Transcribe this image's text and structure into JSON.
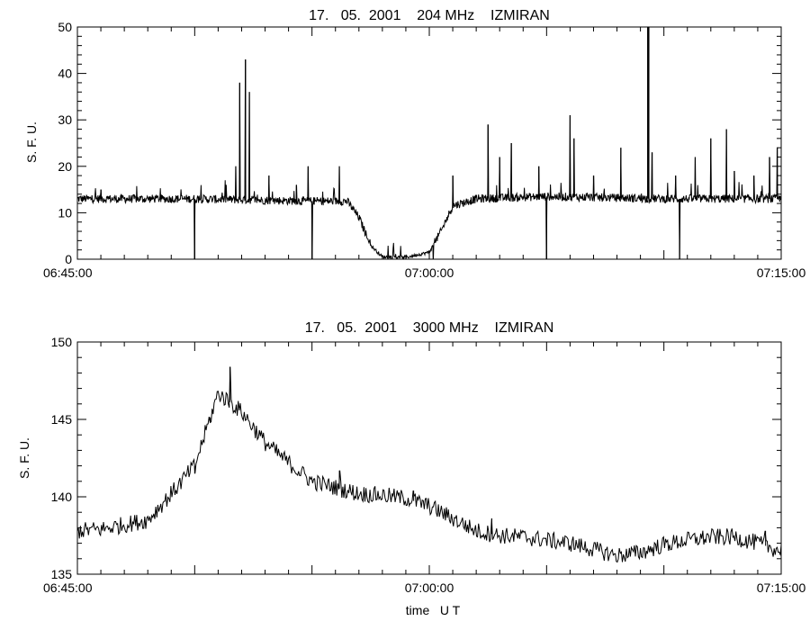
{
  "chart_data": [
    {
      "type": "line",
      "title": "17.   05.  2001    204 MHz    IZMIRAN",
      "xlabel": "",
      "ylabel": "S. F. U.",
      "xlim": [
        "06:45:00",
        "07:15:00"
      ],
      "ylim": [
        0,
        50
      ],
      "x_tick_labels": [
        "06:45:00",
        "07:00:00",
        "07:15:00"
      ],
      "y_tick_labels": [
        "0",
        "10",
        "20",
        "30",
        "40",
        "50"
      ],
      "grid": false,
      "series": [
        {
          "baseline_minutes": [
            0,
            5,
            10,
            11.5,
            12,
            12.5,
            13,
            14,
            15,
            15.5,
            16,
            17,
            20,
            25,
            30
          ],
          "baseline_values": [
            13,
            13,
            12.5,
            12.5,
            9,
            3,
            0.5,
            0.4,
            1.5,
            6,
            11.5,
            13,
            13.5,
            13,
            13
          ],
          "spikes": [
            {
              "t": "06:46:00",
              "sfu": 15
            },
            {
              "t": "06:50:00",
              "sfu": 0
            },
            {
              "t": "06:51:20",
              "sfu": 16
            },
            {
              "t": "06:51:45",
              "sfu": 20
            },
            {
              "t": "06:51:55",
              "sfu": 38
            },
            {
              "t": "06:52:10",
              "sfu": 43
            },
            {
              "t": "06:52:20",
              "sfu": 36
            },
            {
              "t": "06:53:10",
              "sfu": 18
            },
            {
              "t": "06:54:20",
              "sfu": 16
            },
            {
              "t": "06:54:50",
              "sfu": 20
            },
            {
              "t": "06:55:00",
              "sfu": 0
            },
            {
              "t": "06:56:10",
              "sfu": 20
            },
            {
              "t": "07:00:10",
              "sfu": 0
            },
            {
              "t": "07:01:00",
              "sfu": 18
            },
            {
              "t": "07:02:30",
              "sfu": 29
            },
            {
              "t": "07:03:00",
              "sfu": 22
            },
            {
              "t": "07:03:30",
              "sfu": 25
            },
            {
              "t": "07:04:40",
              "sfu": 20
            },
            {
              "t": "07:05:00",
              "sfu": 0
            },
            {
              "t": "07:06:00",
              "sfu": 31
            },
            {
              "t": "07:06:10",
              "sfu": 26
            },
            {
              "t": "07:07:00",
              "sfu": 18
            },
            {
              "t": "07:08:10",
              "sfu": 24
            },
            {
              "t": "07:09:20",
              "sfu": 50
            },
            {
              "t": "07:09:30",
              "sfu": 23
            },
            {
              "t": "07:10:30",
              "sfu": 18
            },
            {
              "t": "07:10:40",
              "sfu": 0
            },
            {
              "t": "07:11:20",
              "sfu": 22
            },
            {
              "t": "07:12:00",
              "sfu": 26
            },
            {
              "t": "07:12:40",
              "sfu": 28
            },
            {
              "t": "07:13:00",
              "sfu": 19
            },
            {
              "t": "07:13:50",
              "sfu": 18
            },
            {
              "t": "07:14:30",
              "sfu": 22
            },
            {
              "t": "07:14:50",
              "sfu": 24
            }
          ]
        }
      ]
    },
    {
      "type": "line",
      "title": "17.   05.  2001    3000 MHz    IZMIRAN",
      "xlabel": "time   U T",
      "ylabel": "S. F. U.",
      "xlim": [
        "06:45:00",
        "07:15:00"
      ],
      "ylim": [
        135,
        150
      ],
      "x_tick_labels": [
        "06:45:00",
        "07:00:00",
        "07:15:00"
      ],
      "y_tick_labels": [
        "135",
        "140",
        "145",
        "150"
      ],
      "grid": false,
      "series": [
        {
          "baseline_minutes": [
            0,
            1,
            2,
            3,
            4,
            5,
            6,
            7,
            8,
            9,
            10,
            11,
            12,
            13,
            14,
            15,
            16,
            17,
            18,
            19,
            20,
            21,
            22,
            23,
            24,
            25,
            26,
            27,
            28,
            29,
            30
          ],
          "baseline_values": [
            137.8,
            137.9,
            138.2,
            138.5,
            140.2,
            142,
            146.7,
            145.5,
            143.5,
            142.2,
            141,
            140.6,
            140.2,
            140.1,
            139.9,
            139.4,
            138.6,
            137.8,
            137.5,
            137.4,
            137.2,
            137.0,
            136.6,
            136.2,
            136.4,
            136.9,
            137.2,
            137.4,
            137.4,
            137.0,
            136.5
          ],
          "peaks": [
            {
              "t": "06:50:00",
              "sfu": 141.5
            },
            {
              "t": "06:50:40",
              "sfu": 144.8
            },
            {
              "t": "06:51:30",
              "sfu": 148.4
            },
            {
              "t": "06:56:10",
              "sfu": 141.7
            },
            {
              "t": "06:59:20",
              "sfu": 140.4
            },
            {
              "t": "07:01:20",
              "sfu": 138.3
            },
            {
              "t": "07:02:40",
              "sfu": 138.6
            },
            {
              "t": "07:14:20",
              "sfu": 137.8
            }
          ]
        }
      ]
    }
  ]
}
